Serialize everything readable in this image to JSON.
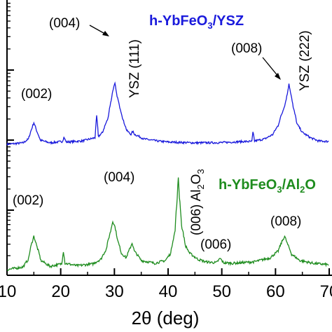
{
  "chart_data": {
    "type": "line",
    "xlabel": "2θ (deg)",
    "xlim": [
      10,
      70
    ],
    "x_ticks": [
      "10",
      "20",
      "30",
      "40",
      "50",
      "60",
      "70"
    ],
    "y_scale": "log",
    "grid": false,
    "series": [
      {
        "name": "h-YbFeO3/YSZ",
        "color": "#1a1adc",
        "points": [
          [
            10,
            1.0
          ],
          [
            13,
            1.05
          ],
          [
            14,
            1.2
          ],
          [
            14.6,
            1.7
          ],
          [
            15,
            2.1
          ],
          [
            15.5,
            1.6
          ],
          [
            16.2,
            1.15
          ],
          [
            18,
            1.05
          ],
          [
            20.3,
            1.1
          ],
          [
            20.6,
            1.28
          ],
          [
            21,
            1.08
          ],
          [
            24,
            1.12
          ],
          [
            26.4,
            1.25
          ],
          [
            26.7,
            2.6
          ],
          [
            27,
            1.3
          ],
          [
            27.8,
            1.5
          ],
          [
            28.8,
            2.4
          ],
          [
            29.4,
            4.5
          ],
          [
            29.8,
            6.8
          ],
          [
            30.1,
            7.9
          ],
          [
            30.4,
            5.6
          ],
          [
            30.9,
            3.8
          ],
          [
            31.6,
            2.3
          ],
          [
            32.3,
            1.6
          ],
          [
            33.1,
            1.4
          ],
          [
            33.4,
            1.55
          ],
          [
            33.8,
            1.4
          ],
          [
            35.5,
            1.2
          ],
          [
            38,
            1.12
          ],
          [
            40,
            1.08
          ],
          [
            45,
            1.05
          ],
          [
            50,
            1.06
          ],
          [
            54,
            1.1
          ],
          [
            55.6,
            1.1
          ],
          [
            55.8,
            1.5
          ],
          [
            56.1,
            1.12
          ],
          [
            58,
            1.2
          ],
          [
            59.5,
            1.4
          ],
          [
            60.5,
            1.9
          ],
          [
            61.3,
            3.0
          ],
          [
            61.8,
            4.0
          ],
          [
            62.2,
            5.6
          ],
          [
            62.5,
            7.8
          ],
          [
            62.8,
            6.0
          ],
          [
            63.3,
            3.5
          ],
          [
            64,
            2.0
          ],
          [
            65,
            1.5
          ],
          [
            66.5,
            1.25
          ],
          [
            68,
            1.12
          ],
          [
            70,
            1.1
          ]
        ]
      },
      {
        "name": "h-YbFeO3/Al2O3",
        "color": "#1e8c1e",
        "points": [
          [
            10,
            1.0
          ],
          [
            13,
            1.08
          ],
          [
            14,
            1.35
          ],
          [
            14.5,
            2.0
          ],
          [
            15,
            2.6
          ],
          [
            15.5,
            2.0
          ],
          [
            16.3,
            1.3
          ],
          [
            18,
            1.1
          ],
          [
            20.2,
            1.18
          ],
          [
            20.5,
            1.7
          ],
          [
            20.8,
            1.2
          ],
          [
            23,
            1.12
          ],
          [
            26,
            1.18
          ],
          [
            27.5,
            1.35
          ],
          [
            28.5,
            1.8
          ],
          [
            29.3,
            3.0
          ],
          [
            29.7,
            4.0
          ],
          [
            30.1,
            3.4
          ],
          [
            30.6,
            2.3
          ],
          [
            31.3,
            1.6
          ],
          [
            32.2,
            1.4
          ],
          [
            33,
            1.9
          ],
          [
            33.3,
            2.15
          ],
          [
            33.7,
            1.7
          ],
          [
            35,
            1.3
          ],
          [
            37.5,
            1.2
          ],
          [
            39.5,
            1.3
          ],
          [
            40.5,
            1.6
          ],
          [
            41.3,
            3.0
          ],
          [
            41.7,
            7.5
          ],
          [
            41.9,
            14
          ],
          [
            42.1,
            8.0
          ],
          [
            42.5,
            3.5
          ],
          [
            43.2,
            2.0
          ],
          [
            44,
            1.6
          ],
          [
            45.5,
            1.35
          ],
          [
            47,
            1.25
          ],
          [
            49,
            1.22
          ],
          [
            49.7,
            1.38
          ],
          [
            50.3,
            1.22
          ],
          [
            52,
            1.2
          ],
          [
            56,
            1.25
          ],
          [
            59,
            1.4
          ],
          [
            60.5,
            1.7
          ],
          [
            61.3,
            2.3
          ],
          [
            61.7,
            2.6
          ],
          [
            62.2,
            2.1
          ],
          [
            63,
            1.55
          ],
          [
            64.5,
            1.3
          ],
          [
            67,
            1.2
          ],
          [
            70,
            1.15
          ]
        ]
      }
    ],
    "annotations": {
      "top": {
        "title_main": "h-YbFeO",
        "title_sub": "3",
        "title_tail": "/YSZ",
        "p002": "(002)",
        "p004": "(004)",
        "p008": "(008)",
        "ysz111": "YSZ (111)",
        "ysz222": "YSZ (222)"
      },
      "bottom": {
        "title_main": "h-YbFeO",
        "title_sub": "3",
        "title_mid": "/Al",
        "title_sub2": "2",
        "title_tail": "O",
        "p002": "(002)",
        "p004": "(004)",
        "p006": "(006)",
        "p008": "(008)",
        "al2o3_pre": "(006) Al",
        "al2o3_sub1": "2",
        "al2o3_mid": "O",
        "al2o3_sub2": "3"
      }
    }
  }
}
